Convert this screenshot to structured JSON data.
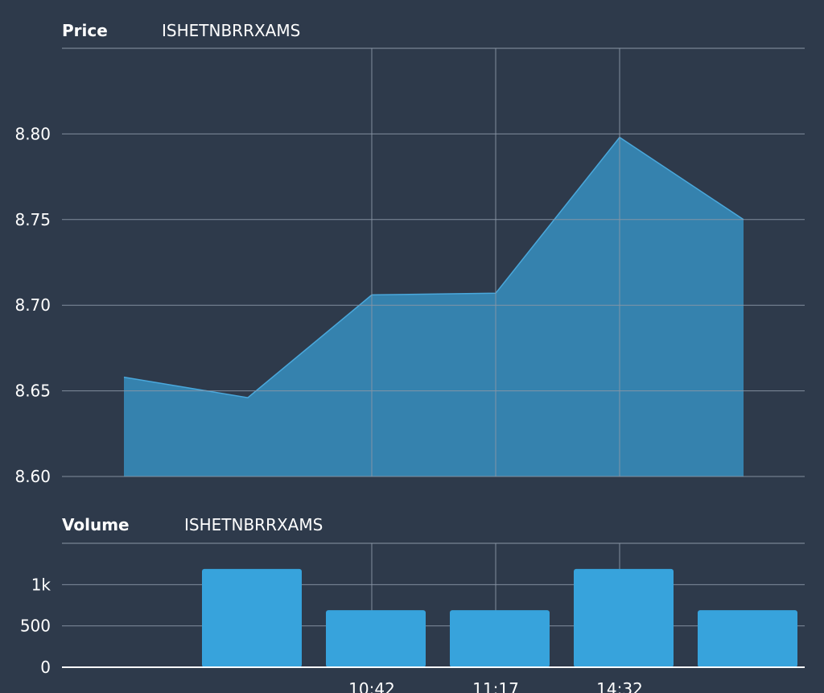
{
  "price_panel": {
    "label": "Price",
    "symbol": "ISHETNBRRXAMS"
  },
  "volume_panel": {
    "label": "Volume",
    "symbol": "ISHETNBRRXAMS"
  },
  "colors": {
    "background": "#2e3a4b",
    "area_fill": "#3686b3",
    "area_line": "#4aa8dc",
    "bar": "#37a3dc",
    "grid": "#8a96a6",
    "axis": "#ffffff"
  },
  "chart_data": [
    {
      "type": "area",
      "title": "Price",
      "subtitle": "ISHETNBRRXAMS",
      "x": [
        0,
        1,
        2,
        3,
        4,
        5
      ],
      "xticks": [
        {
          "x": 2,
          "label": "10:42"
        },
        {
          "x": 3,
          "label": "11:17"
        },
        {
          "x": 4,
          "label": "14:32"
        }
      ],
      "values": [
        8.658,
        8.646,
        8.706,
        8.707,
        8.798,
        8.75
      ],
      "ylim": [
        8.6,
        8.85
      ],
      "yticks": [
        8.6,
        8.65,
        8.7,
        8.75,
        8.8
      ],
      "ytick_labels": [
        "8.60",
        "8.65",
        "8.70",
        "8.75",
        "8.80"
      ],
      "grid": true
    },
    {
      "type": "bar",
      "title": "Volume",
      "subtitle": "ISHETNBRRXAMS",
      "x": [
        1,
        2,
        3,
        4,
        5
      ],
      "values": [
        1190,
        690,
        690,
        1190,
        690
      ],
      "ylim": [
        0,
        1500
      ],
      "yticks": [
        0,
        500,
        1000
      ],
      "ytick_labels": [
        "0",
        "500",
        "1k"
      ],
      "xticks": [
        {
          "x": 2,
          "label": "10:42"
        },
        {
          "x": 3,
          "label": "11:17"
        },
        {
          "x": 4,
          "label": "14:32"
        }
      ],
      "grid": true
    }
  ]
}
